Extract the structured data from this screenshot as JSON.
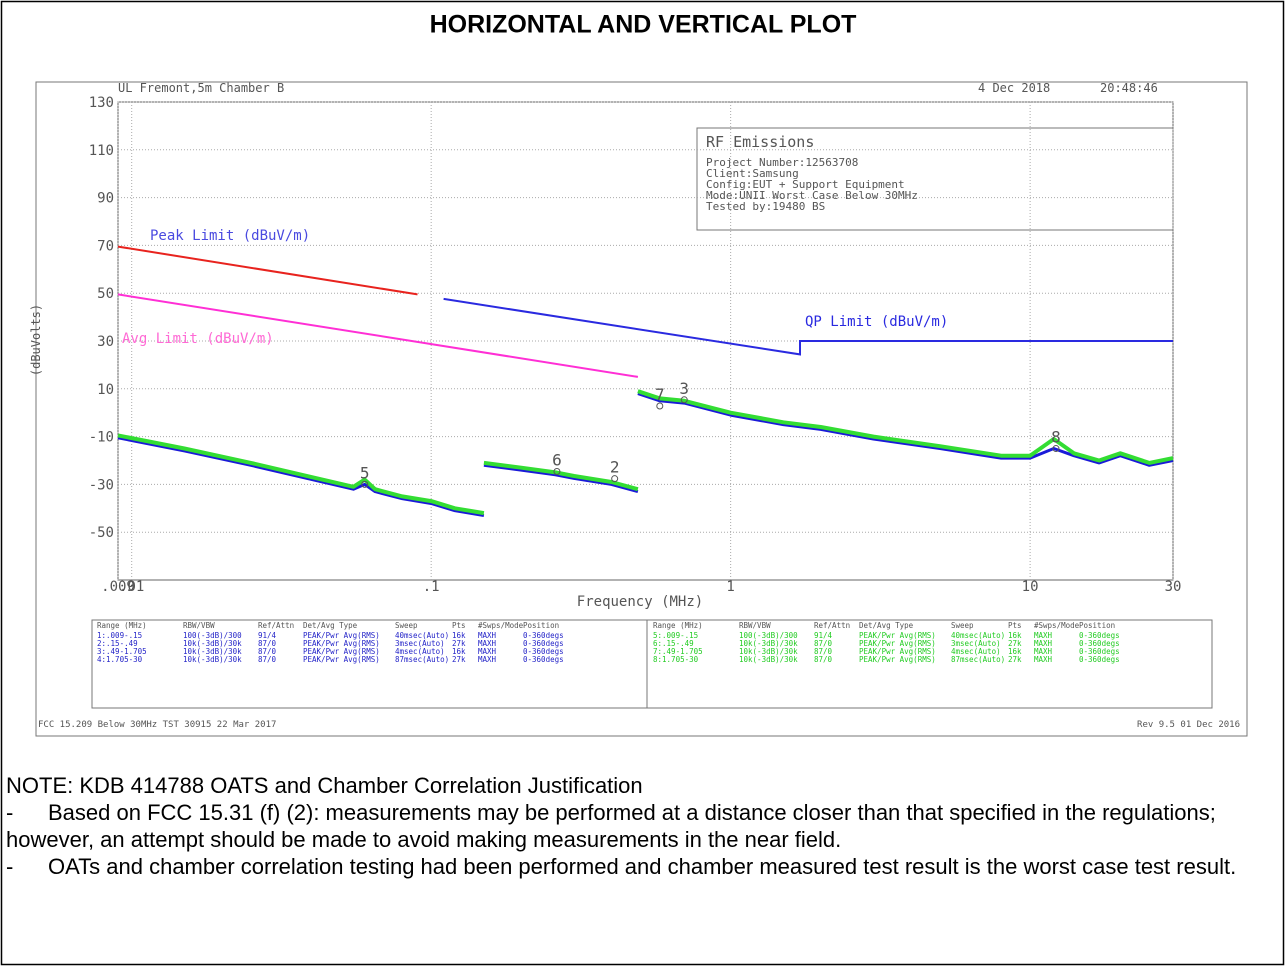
{
  "header": {
    "title": "HORIZONTAL AND VERTICAL PLOT"
  },
  "plot": {
    "site": "UL Fremont,5m Chamber B",
    "date": "4 Dec 2018",
    "time": "20:48:46",
    "info": {
      "heading": "RF Emissions",
      "lines": [
        "Project Number:12563708",
        "Client:Samsung",
        "Config:EUT + Support Equipment",
        "Mode:UNII Worst Case Below 30MHz",
        "Tested by:19480 BS"
      ]
    },
    "footer_left": "FCC 15.209 Below 30MHz TST 30915 22 Mar 2017",
    "footer_right": "Rev 9.5 01 Dec 2016",
    "tables": [
      {
        "color": "#2424c8",
        "header": [
          "Range (MHz)",
          "RBW/VBW",
          "Ref/Attn",
          "Det/Avg Type",
          "Sweep",
          "Pts",
          "#Swps/Mode",
          "Position"
        ],
        "rows": [
          [
            "1:.009-.15",
            "100(-3dB)/300",
            "91/4",
            "PEAK/Pwr Avg(RMS)",
            "40msec(Auto)",
            "16k",
            "MAXH",
            "0-360degs"
          ],
          [
            "2:.15-.49",
            "10k(-3dB)/30k",
            "87/0",
            "PEAK/Pwr Avg(RMS)",
            "3msec(Auto)",
            "27k",
            "MAXH",
            "0-360degs"
          ],
          [
            "3:.49-1.705",
            "10k(-3dB)/30k",
            "87/0",
            "PEAK/Pwr Avg(RMS)",
            "4msec(Auto)",
            "16k",
            "MAXH",
            "0-360degs"
          ],
          [
            "4:1.705-30",
            "10k(-3dB)/30k",
            "87/0",
            "PEAK/Pwr Avg(RMS)",
            "87msec(Auto)",
            "27k",
            "MAXH",
            "0-360degs"
          ]
        ]
      },
      {
        "color": "#22cc22",
        "header": [
          "Range (MHz)",
          "RBW/VBW",
          "Ref/Attn",
          "Det/Avg Type",
          "Sweep",
          "Pts",
          "#Swps/Mode",
          "Position"
        ],
        "rows": [
          [
            "5:.009-.15",
            "100(-3dB)/300",
            "91/4",
            "PEAK/Pwr Avg(RMS)",
            "40msec(Auto)",
            "16k",
            "MAXH",
            "0-360degs"
          ],
          [
            "6:.15-.49",
            "10k(-3dB)/30k",
            "87/0",
            "PEAK/Pwr Avg(RMS)",
            "3msec(Auto)",
            "27k",
            "MAXH",
            "0-360degs"
          ],
          [
            "7:.49-1.705",
            "10k(-3dB)/30k",
            "87/0",
            "PEAK/Pwr Avg(RMS)",
            "4msec(Auto)",
            "16k",
            "MAXH",
            "0-360degs"
          ],
          [
            "8:1.705-30",
            "10k(-3dB)/30k",
            "87/0",
            "PEAK/Pwr Avg(RMS)",
            "87msec(Auto)",
            "27k",
            "MAXH",
            "0-360degs"
          ]
        ]
      }
    ]
  },
  "chart_data": {
    "type": "line",
    "x_label": "Frequency (MHz)",
    "y_label": "(dBuVolts)",
    "log_x": true,
    "grid": true,
    "xlim": [
      0.009,
      30
    ],
    "ylim": [
      -70,
      130
    ],
    "xticks": [
      {
        "value": 0.009,
        "label": ".009"
      },
      {
        "value": 0.01,
        "label": ".01"
      },
      {
        "value": 0.1,
        "label": ".1"
      },
      1,
      10,
      30
    ],
    "yticks": [
      -50,
      -30,
      -10,
      10,
      30,
      50,
      70,
      90,
      110,
      130
    ],
    "series": [
      {
        "name": "Peak Limit (dBuV/m)",
        "color": "#e8231e",
        "label_color": "#4a4ae0",
        "x": [
          0.009,
          0.09
        ],
        "values": [
          69.5,
          49.5
        ]
      },
      {
        "name": "Avg Limit (dBuV/m)",
        "color": "#ff2fd5",
        "label_color": "#ff6ad5",
        "x": [
          0.009,
          0.49
        ],
        "values": [
          49.5,
          15
        ]
      },
      {
        "name": "QP Limit (dBuV/m)",
        "color": "#2a2ae0",
        "label_color": "#2a2ae0",
        "x": [
          0.11,
          1.705,
          1.705,
          30
        ],
        "values": [
          47.6,
          24.4,
          30,
          30
        ]
      }
    ],
    "traces": [
      {
        "color": "#1a1ad8",
        "x": [
          0.009,
          0.015,
          0.025,
          0.04,
          0.055,
          0.06,
          0.065,
          0.08,
          0.1,
          0.12,
          0.15,
          0.15,
          0.15,
          0.2,
          0.26,
          0.3,
          0.4,
          0.49,
          0.49,
          0.49,
          0.58,
          0.7,
          1,
          1.5,
          2,
          3,
          5,
          8,
          10,
          12,
          14,
          17,
          20,
          25,
          30
        ],
        "values": [
          -10.5,
          -16,
          -22,
          -28,
          -32,
          -30,
          -33,
          -36,
          -38,
          -41,
          -43,
          null,
          -22,
          -24,
          -26,
          -27.5,
          -30,
          -33,
          null,
          8,
          5,
          4,
          -1,
          -5,
          -7,
          -11,
          -15,
          -19,
          -19,
          -15,
          -18,
          -21,
          -18,
          -22,
          -20
        ]
      },
      {
        "color": "#33dd33",
        "x": [
          0.009,
          0.015,
          0.025,
          0.04,
          0.055,
          0.06,
          0.065,
          0.08,
          0.1,
          0.12,
          0.15,
          0.15,
          0.15,
          0.2,
          0.26,
          0.3,
          0.4,
          0.49,
          0.49,
          0.49,
          0.58,
          0.7,
          1,
          1.5,
          2,
          3,
          5,
          8,
          10,
          12,
          14,
          17,
          20,
          25,
          30
        ],
        "values": [
          -9.5,
          -15,
          -21,
          -27,
          -31,
          -28,
          -32,
          -35,
          -37,
          -40,
          -42,
          null,
          -21,
          -23,
          -25,
          -26.5,
          -29,
          -32,
          null,
          9,
          6,
          5,
          0,
          -4,
          -6,
          -10,
          -14,
          -18,
          -18,
          -11,
          -17,
          -20,
          -17,
          -21,
          -19
        ]
      }
    ],
    "markers": [
      {
        "label": "5",
        "x": 0.06,
        "y": -30
      },
      {
        "label": "6",
        "x": 0.263,
        "y": -24.6
      },
      {
        "label": "2",
        "x": 0.41,
        "y": -27.6
      },
      {
        "label": "7",
        "x": 0.58,
        "y": 2.8
      },
      {
        "label": "3",
        "x": 0.7,
        "y": 5.4
      },
      {
        "label": "8",
        "x": 12.2,
        "y": -15
      }
    ]
  },
  "note": {
    "title": "NOTE: KDB 414788 OATS and Chamber Correlation Justification",
    "items": [
      {
        "marker": "-",
        "text": "Based on FCC 15.31 (f) (2): measurements may be performed at a distance closer than that specified in the regulations; however, an attempt should be made to avoid making measurements in the near field."
      },
      {
        "marker": "-",
        "text": "OATs and chamber correlation testing had been performed and chamber measured test result is the worst case test result."
      }
    ]
  }
}
